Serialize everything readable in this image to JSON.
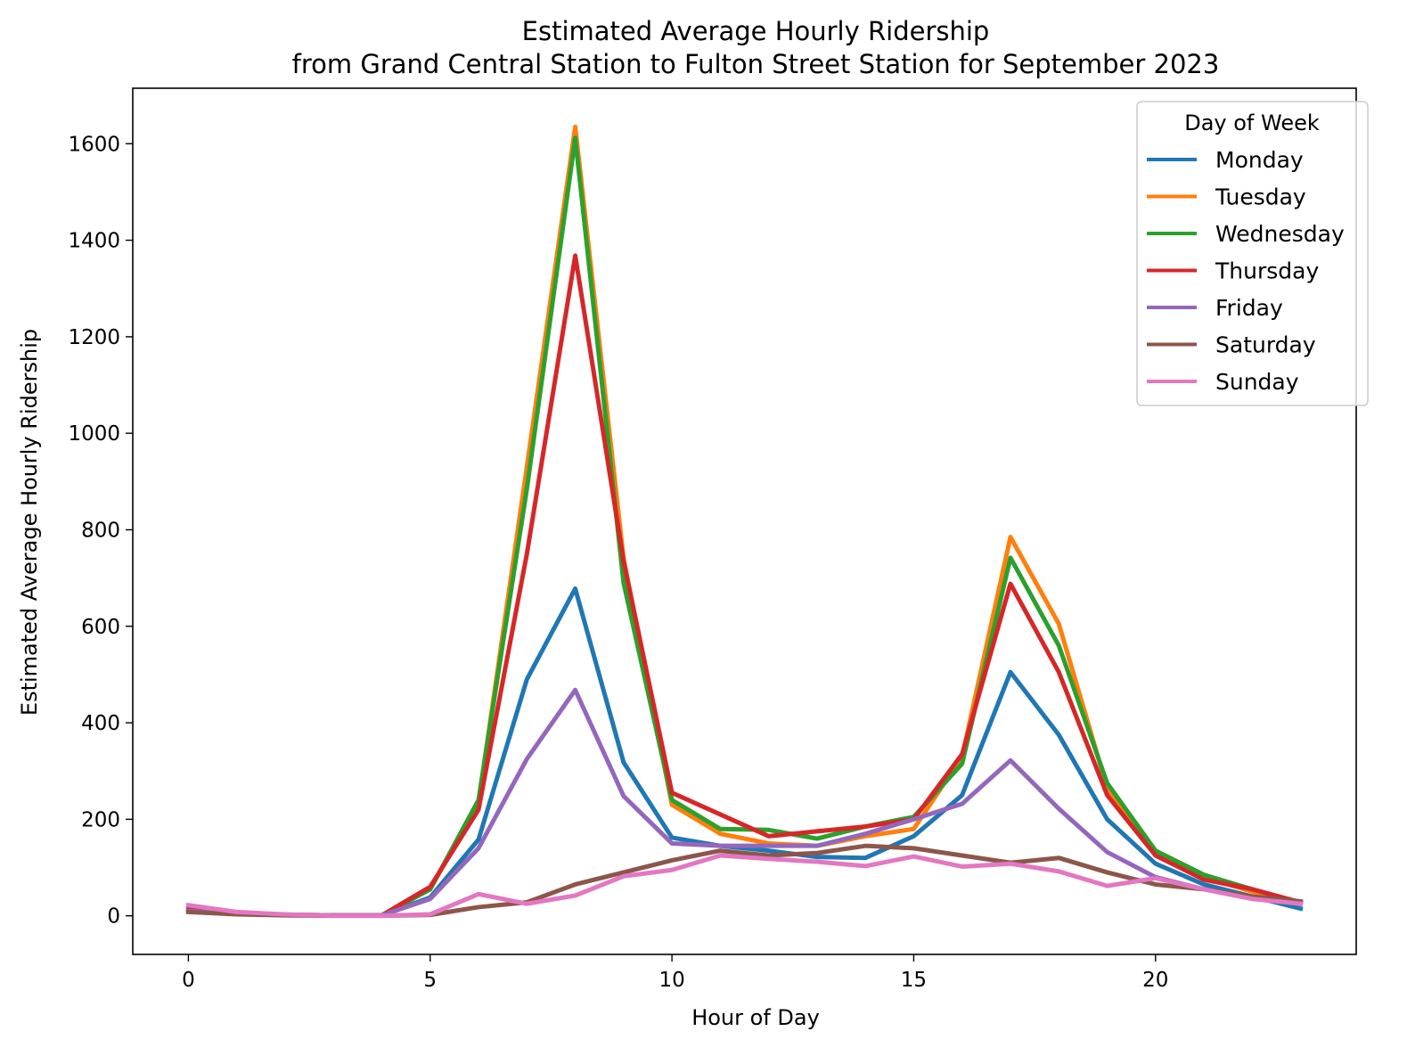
{
  "chart_data": {
    "type": "line",
    "title_lines": [
      "Estimated Average Hourly Ridership",
      "from Grand Central Station to Fulton Street Station for September 2023"
    ],
    "xlabel": "Hour of Day",
    "ylabel": "Estimated Average Hourly Ridership",
    "xlim": [
      -1.15,
      24.15
    ],
    "ylim": [
      -80,
      1715
    ],
    "xticks": [
      0,
      5,
      10,
      15,
      20
    ],
    "yticks": [
      0,
      200,
      400,
      600,
      800,
      1000,
      1200,
      1400,
      1600
    ],
    "grid": false,
    "legend": {
      "title": "Day of Week",
      "position": "top-right"
    },
    "x": [
      0,
      1,
      2,
      3,
      4,
      5,
      6,
      7,
      8,
      9,
      10,
      11,
      12,
      13,
      14,
      15,
      16,
      17,
      18,
      19,
      20,
      21,
      22,
      23
    ],
    "series": [
      {
        "name": "Monday",
        "color": "#1f77b4",
        "values": [
          15,
          5,
          2,
          1,
          1,
          38,
          158,
          490,
          678,
          318,
          162,
          145,
          135,
          122,
          120,
          165,
          250,
          505,
          375,
          200,
          108,
          65,
          40,
          15
        ]
      },
      {
        "name": "Tuesday",
        "color": "#ff7f0e",
        "values": [
          12,
          5,
          2,
          1,
          1,
          55,
          235,
          930,
          1635,
          740,
          230,
          170,
          150,
          145,
          165,
          180,
          330,
          785,
          605,
          265,
          125,
          80,
          50,
          25
        ]
      },
      {
        "name": "Wednesday",
        "color": "#2ca02c",
        "values": [
          12,
          5,
          2,
          1,
          1,
          55,
          240,
          885,
          1612,
          690,
          240,
          180,
          178,
          160,
          185,
          205,
          315,
          742,
          560,
          275,
          135,
          85,
          55,
          27
        ]
      },
      {
        "name": "Thursday",
        "color": "#d62728",
        "values": [
          12,
          5,
          2,
          1,
          1,
          60,
          220,
          750,
          1368,
          735,
          255,
          210,
          165,
          175,
          185,
          200,
          335,
          688,
          505,
          250,
          125,
          75,
          55,
          28
        ]
      },
      {
        "name": "Friday",
        "color": "#9467bd",
        "values": [
          10,
          4,
          2,
          1,
          1,
          35,
          140,
          325,
          468,
          248,
          150,
          145,
          145,
          145,
          170,
          200,
          232,
          322,
          222,
          132,
          80,
          55,
          38,
          25
        ]
      },
      {
        "name": "Saturday",
        "color": "#8c564b",
        "values": [
          8,
          3,
          1,
          0,
          0,
          2,
          18,
          28,
          65,
          90,
          115,
          135,
          125,
          130,
          145,
          140,
          125,
          110,
          120,
          90,
          65,
          55,
          40,
          30
        ]
      },
      {
        "name": "Sunday",
        "color": "#e377c2",
        "values": [
          22,
          8,
          3,
          0,
          0,
          3,
          45,
          25,
          42,
          82,
          95,
          125,
          118,
          112,
          103,
          123,
          102,
          108,
          92,
          62,
          78,
          55,
          35,
          25
        ]
      }
    ]
  }
}
